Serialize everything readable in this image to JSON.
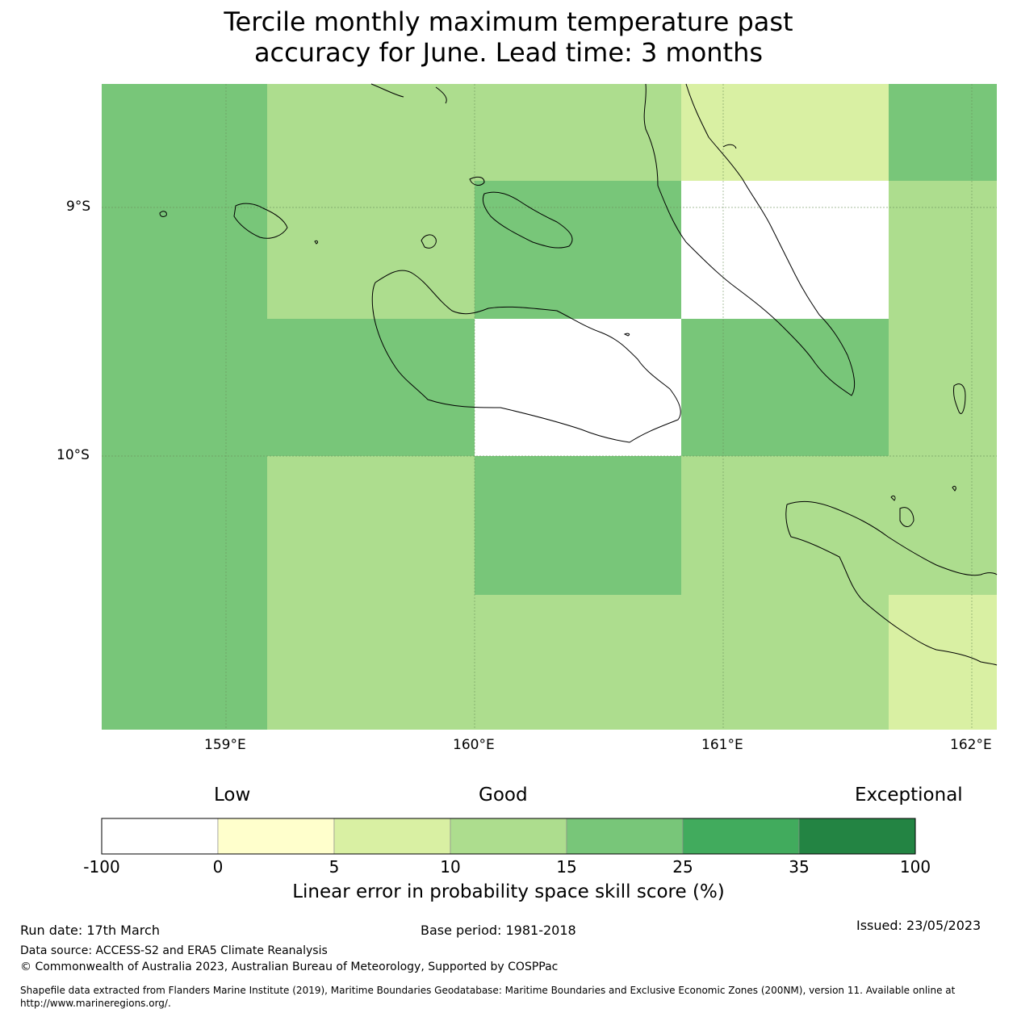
{
  "title_line1": "Tercile monthly maximum temperature past",
  "title_line2": "accuracy for June. Lead time: 3 months",
  "map": {
    "lat_labels": [
      "9°S",
      "10°S"
    ],
    "lon_labels": [
      "159°E",
      "160°E",
      "161°E",
      "162°E"
    ],
    "colors": {
      "white": "#ffffff",
      "yellow": "#ffffcc",
      "lightyellowgreen": "#d9f0a3",
      "lightgreen": "#addd8e",
      "green": "#78c679",
      "midgreen": "#41ab5d",
      "darkgreen": "#238443"
    },
    "grid": {
      "note_rows": "north to south",
      "cells": [
        [
          "green",
          "lightgreen",
          "lightgreen",
          "lightyellowgreen",
          "green"
        ],
        [
          "green",
          "lightgreen",
          "green",
          "white",
          "lightgreen"
        ],
        [
          "green",
          "green",
          "white",
          "green",
          "lightgreen"
        ],
        [
          "green",
          "lightgreen",
          "green",
          "lightgreen",
          "lightgreen"
        ],
        [
          "green",
          "lightgreen",
          "lightgreen",
          "lightgreen",
          "lightyellowgreen"
        ]
      ]
    }
  },
  "colorbar": {
    "categories": [
      "Low",
      "Good",
      "Exceptional"
    ],
    "ticks": [
      "-100",
      "0",
      "5",
      "10",
      "15",
      "25",
      "35",
      "100"
    ],
    "bins": [
      "white",
      "yellow",
      "lightyellowgreen",
      "lightgreen",
      "green",
      "midgreen",
      "darkgreen"
    ],
    "label": "Linear error in probability space skill score (%)"
  },
  "footer": {
    "run_date": "Run date: 17th March",
    "base_period": "Base period: 1981-2018",
    "issued": "Issued: 23/05/2023",
    "data_source": "Data source: ACCESS-S2 and ERA5 Climate Reanalysis",
    "copyright": "© Commonwealth of Australia 2023, Australian Bureau of Meteorology, Supported by COSPPac",
    "shapefile_line1": "Shapefile data extracted from Flanders Marine Institute (2019), Maritime Boundaries Geodatabase: Maritime Boundaries and Exclusive Economic Zones (200NM), version 11. Available online at",
    "shapefile_line2": "http://www.marineregions.org/."
  }
}
